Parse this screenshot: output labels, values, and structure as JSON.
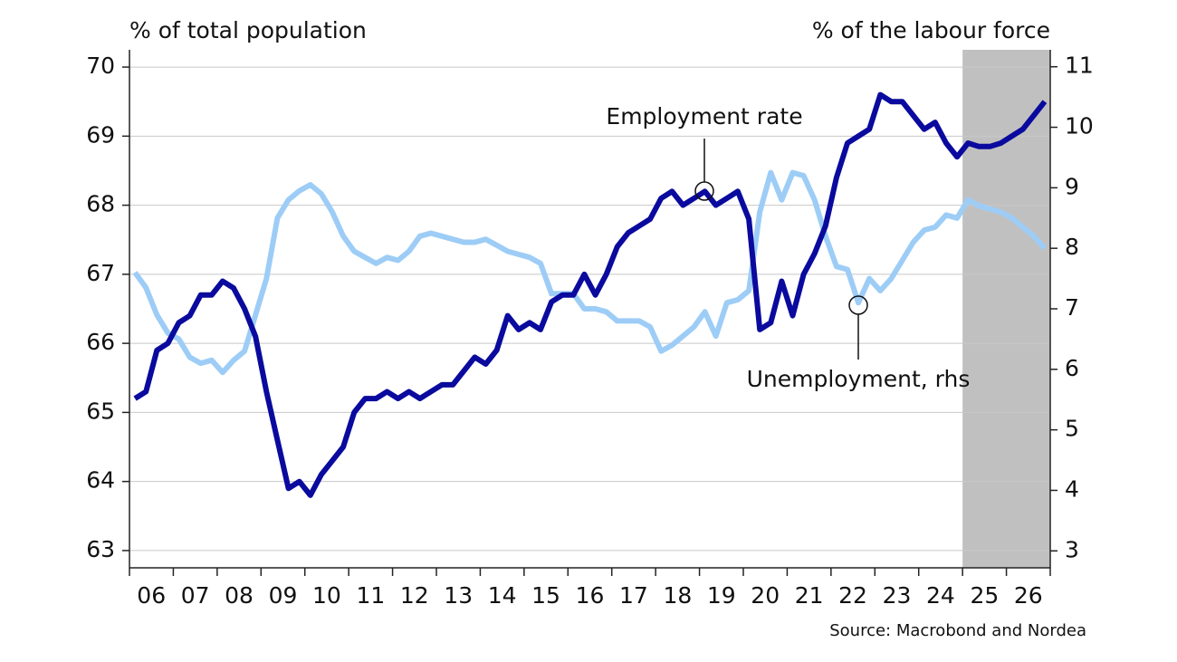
{
  "chart_data": {
    "type": "line",
    "left_axis_label": "% of total population",
    "right_axis_label": "% of the labour force",
    "source": "Source: Macrobond and Nordea",
    "annotations": [
      "Employment rate",
      "Unemployment, rhs"
    ],
    "x": [
      2006.125,
      2006.375,
      2006.625,
      2006.875,
      2007.125,
      2007.375,
      2007.625,
      2007.875,
      2008.125,
      2008.375,
      2008.625,
      2008.875,
      2009.125,
      2009.375,
      2009.625,
      2009.875,
      2010.125,
      2010.375,
      2010.625,
      2010.875,
      2011.125,
      2011.375,
      2011.625,
      2011.875,
      2012.125,
      2012.375,
      2012.625,
      2012.875,
      2013.125,
      2013.375,
      2013.625,
      2013.875,
      2014.125,
      2014.375,
      2014.625,
      2014.875,
      2015.125,
      2015.375,
      2015.625,
      2015.875,
      2016.125,
      2016.375,
      2016.625,
      2016.875,
      2017.125,
      2017.375,
      2017.625,
      2017.875,
      2018.125,
      2018.375,
      2018.625,
      2018.875,
      2019.125,
      2019.375,
      2019.625,
      2019.875,
      2020.125,
      2020.375,
      2020.625,
      2020.875,
      2021.125,
      2021.375,
      2021.625,
      2021.875,
      2022.125,
      2022.375,
      2022.625,
      2022.875,
      2023.125,
      2023.375,
      2023.625,
      2023.875,
      2024.125,
      2024.375,
      2024.625,
      2024.875,
      2025.125,
      2025.375,
      2025.625,
      2025.875,
      2026.125,
      2026.375,
      2026.625,
      2026.875
    ],
    "series": [
      {
        "name": "Employment rate",
        "color": "#0a0a9e",
        "values": [
          65.2,
          65.3,
          65.9,
          66.0,
          66.3,
          66.4,
          66.7,
          66.7,
          66.9,
          66.8,
          66.5,
          66.1,
          65.3,
          64.6,
          63.9,
          64.0,
          63.8,
          64.1,
          64.3,
          64.5,
          65.0,
          65.2,
          65.2,
          65.3,
          65.2,
          65.3,
          65.2,
          65.3,
          65.4,
          65.4,
          65.6,
          65.8,
          65.7,
          65.9,
          66.4,
          66.2,
          66.3,
          66.2,
          66.6,
          66.7,
          66.7,
          67.0,
          66.7,
          67.0,
          67.4,
          67.6,
          67.7,
          67.8,
          68.1,
          68.2,
          68.0,
          68.1,
          68.2,
          68.0,
          68.1,
          68.2,
          67.8,
          66.2,
          66.3,
          66.9,
          66.4,
          67.0,
          67.3,
          67.7,
          68.4,
          68.9,
          69.0,
          69.1,
          69.6,
          69.5,
          69.5,
          69.3,
          69.1,
          69.2,
          68.9,
          68.7,
          68.9,
          68.85,
          68.85,
          68.9,
          69.0,
          69.1,
          69.3,
          69.5
        ]
      },
      {
        "name": "Unemployment, rhs",
        "color": "#9dcdf6",
        "axis": "y2",
        "values": [
          7.6,
          7.35,
          6.9,
          6.6,
          6.5,
          6.2,
          6.1,
          6.15,
          5.95,
          6.15,
          6.3,
          6.9,
          7.5,
          8.5,
          8.8,
          8.95,
          9.05,
          8.9,
          8.6,
          8.2,
          7.95,
          7.85,
          7.75,
          7.85,
          7.8,
          7.95,
          8.2,
          8.25,
          8.2,
          8.15,
          8.1,
          8.1,
          8.15,
          8.05,
          7.95,
          7.9,
          7.85,
          7.75,
          7.25,
          7.25,
          7.25,
          7.0,
          7.0,
          6.95,
          6.8,
          6.8,
          6.8,
          6.7,
          6.3,
          6.4,
          6.55,
          6.7,
          6.95,
          6.55,
          7.1,
          7.15,
          7.3,
          8.6,
          9.25,
          8.8,
          9.25,
          9.2,
          8.8,
          8.2,
          7.7,
          7.65,
          7.1,
          7.5,
          7.3,
          7.5,
          7.8,
          8.1,
          8.3,
          8.35,
          8.55,
          8.5,
          8.8,
          8.7,
          8.65,
          8.6,
          8.5,
          8.35,
          8.2,
          8.0
        ]
      }
    ],
    "xlim": [
      2006,
      2027
    ],
    "xticks": [
      {
        "value": 2006.5,
        "label": "06"
      },
      {
        "value": 2007.5,
        "label": "07"
      },
      {
        "value": 2008.5,
        "label": "08"
      },
      {
        "value": 2009.5,
        "label": "09"
      },
      {
        "value": 2010.5,
        "label": "10"
      },
      {
        "value": 2011.5,
        "label": "11"
      },
      {
        "value": 2012.5,
        "label": "12"
      },
      {
        "value": 2013.5,
        "label": "13"
      },
      {
        "value": 2014.5,
        "label": "14"
      },
      {
        "value": 2015.5,
        "label": "15"
      },
      {
        "value": 2016.5,
        "label": "16"
      },
      {
        "value": 2017.5,
        "label": "17"
      },
      {
        "value": 2018.5,
        "label": "18"
      },
      {
        "value": 2019.5,
        "label": "19"
      },
      {
        "value": 2020.5,
        "label": "20"
      },
      {
        "value": 2021.5,
        "label": "21"
      },
      {
        "value": 2022.5,
        "label": "22"
      },
      {
        "value": 2023.5,
        "label": "23"
      },
      {
        "value": 2024.5,
        "label": "24"
      },
      {
        "value": 2025.5,
        "label": "25"
      },
      {
        "value": 2026.5,
        "label": "26"
      }
    ],
    "ylim": [
      62.75,
      70.25
    ],
    "yticks": [
      63,
      64,
      65,
      66,
      67,
      68,
      69,
      70
    ],
    "y2lim": [
      2.72,
      11.28
    ],
    "y2ticks": [
      3,
      4,
      5,
      6,
      7,
      8,
      9,
      10,
      11
    ],
    "shade_xlim": [
      2025,
      2027
    ],
    "shade_color": "#c0c0c0",
    "grid": true
  }
}
